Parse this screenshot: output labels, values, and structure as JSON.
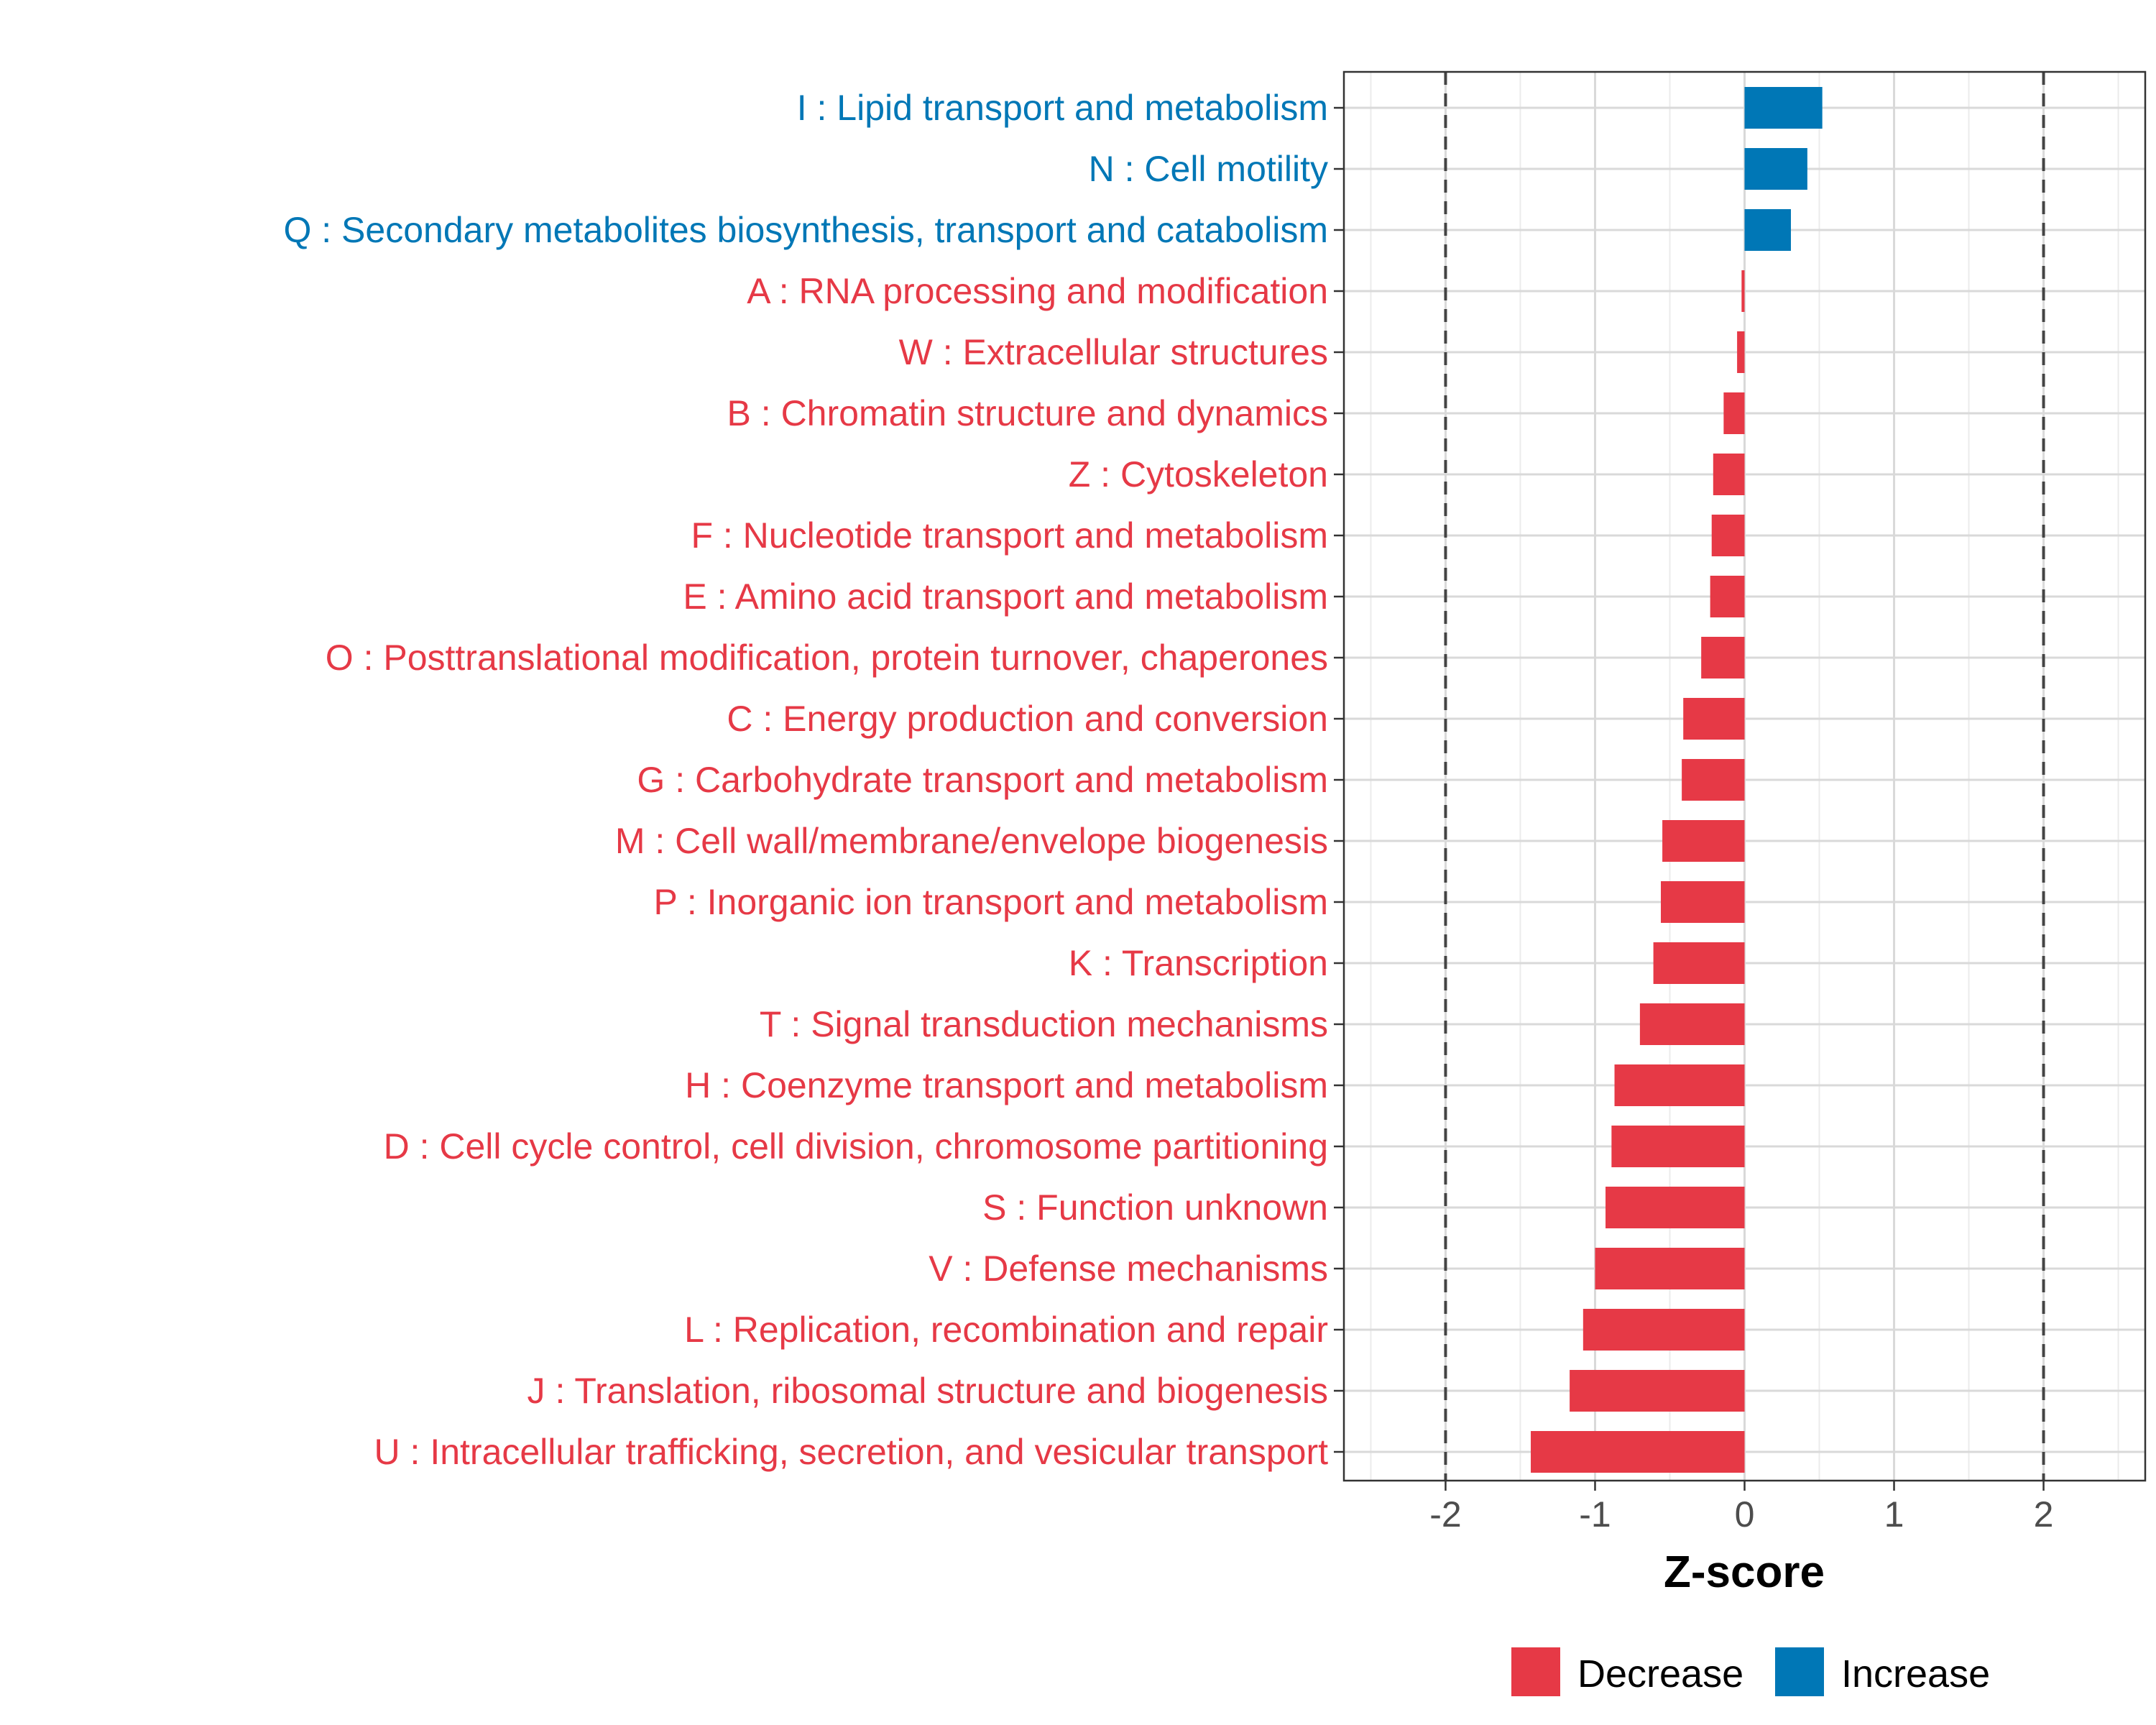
{
  "chart_data": {
    "type": "bar",
    "orientation": "horizontal",
    "xlabel": "Z-score",
    "xlim": [
      -2.68,
      2.68
    ],
    "xticks": [
      -2,
      -1,
      0,
      1,
      2
    ],
    "xtick_labels": [
      "-2",
      "-1",
      "0",
      "1",
      "2"
    ],
    "reference_lines": [
      -2,
      2
    ],
    "grid": true,
    "legend_position": "bottom",
    "colors": {
      "Decrease": "#e63946",
      "Increase": "#0077b6"
    },
    "legend": [
      {
        "label": "Decrease",
        "color": "#e63946"
      },
      {
        "label": "Increase",
        "color": "#0077b6"
      }
    ],
    "categories": [
      "I : Lipid transport and metabolism",
      "N : Cell motility",
      "Q : Secondary metabolites biosynthesis, transport and catabolism",
      "A : RNA processing and modification",
      "W : Extracellular structures",
      "B : Chromatin structure and dynamics",
      "Z : Cytoskeleton",
      "F : Nucleotide transport and metabolism",
      "E : Amino acid transport and metabolism",
      "O : Posttranslational modification, protein turnover, chaperones",
      "C : Energy production and conversion",
      "G : Carbohydrate transport and metabolism",
      "M : Cell wall/membrane/envelope biogenesis",
      "P : Inorganic ion transport and metabolism",
      "K : Transcription",
      "T : Signal transduction mechanisms",
      "H : Coenzyme transport and metabolism",
      "D : Cell cycle control, cell division, chromosome partitioning",
      "S : Function unknown",
      "V : Defense mechanisms",
      "L : Replication, recombination and repair",
      "J : Translation, ribosomal structure and biogenesis",
      "U : Intracellular trafficking, secretion, and vesicular transport"
    ],
    "values": [
      0.52,
      0.42,
      0.31,
      -0.02,
      -0.05,
      -0.14,
      -0.21,
      -0.22,
      -0.23,
      -0.29,
      -0.41,
      -0.42,
      -0.55,
      -0.56,
      -0.61,
      -0.7,
      -0.87,
      -0.89,
      -0.93,
      -1.0,
      -1.08,
      -1.17,
      -1.43
    ],
    "groups": [
      "Increase",
      "Increase",
      "Increase",
      "Decrease",
      "Decrease",
      "Decrease",
      "Decrease",
      "Decrease",
      "Decrease",
      "Decrease",
      "Decrease",
      "Decrease",
      "Decrease",
      "Decrease",
      "Decrease",
      "Decrease",
      "Decrease",
      "Decrease",
      "Decrease",
      "Decrease",
      "Decrease",
      "Decrease",
      "Decrease"
    ]
  }
}
